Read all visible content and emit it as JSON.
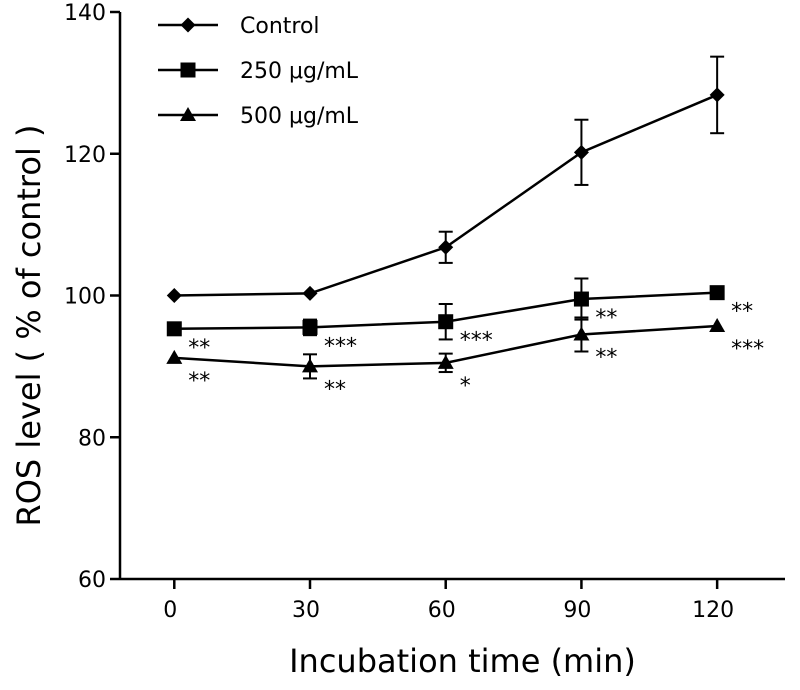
{
  "chart_data": {
    "type": "line",
    "title": "",
    "xlabel": "Incubation time (min)",
    "ylabel": "ROS level ( % of control )",
    "x": [
      0,
      30,
      60,
      90,
      120
    ],
    "x_ticks": [
      "0",
      "30",
      "60",
      "90",
      "120"
    ],
    "xlim": [
      -12,
      135
    ],
    "ylim": [
      60,
      140
    ],
    "y_ticks": [
      "60",
      "80",
      "100",
      "120",
      "140"
    ],
    "y_tick_values": [
      60,
      80,
      100,
      120,
      140
    ],
    "grid": false,
    "legend_position": "top-left",
    "series": [
      {
        "name": "Control",
        "marker": "diamond",
        "values": [
          100.0,
          100.3,
          106.8,
          120.2,
          128.3
        ],
        "errors": [
          0,
          0,
          2.2,
          4.6,
          5.4
        ],
        "significance": [
          "",
          "",
          "",
          "",
          ""
        ]
      },
      {
        "name": "250 μg/mL",
        "marker": "square",
        "values": [
          95.3,
          95.5,
          96.3,
          99.5,
          100.4
        ],
        "errors": [
          0,
          1.1,
          2.5,
          2.9,
          0
        ],
        "significance": [
          "**",
          "***",
          "***",
          "**",
          "**"
        ]
      },
      {
        "name": "500 μg/mL",
        "marker": "triangle",
        "values": [
          91.2,
          90.0,
          90.5,
          94.5,
          95.7
        ],
        "errors": [
          0,
          1.7,
          1.3,
          2.4,
          0
        ],
        "significance": [
          "**",
          "**",
          "*",
          "**",
          "***"
        ]
      }
    ]
  }
}
